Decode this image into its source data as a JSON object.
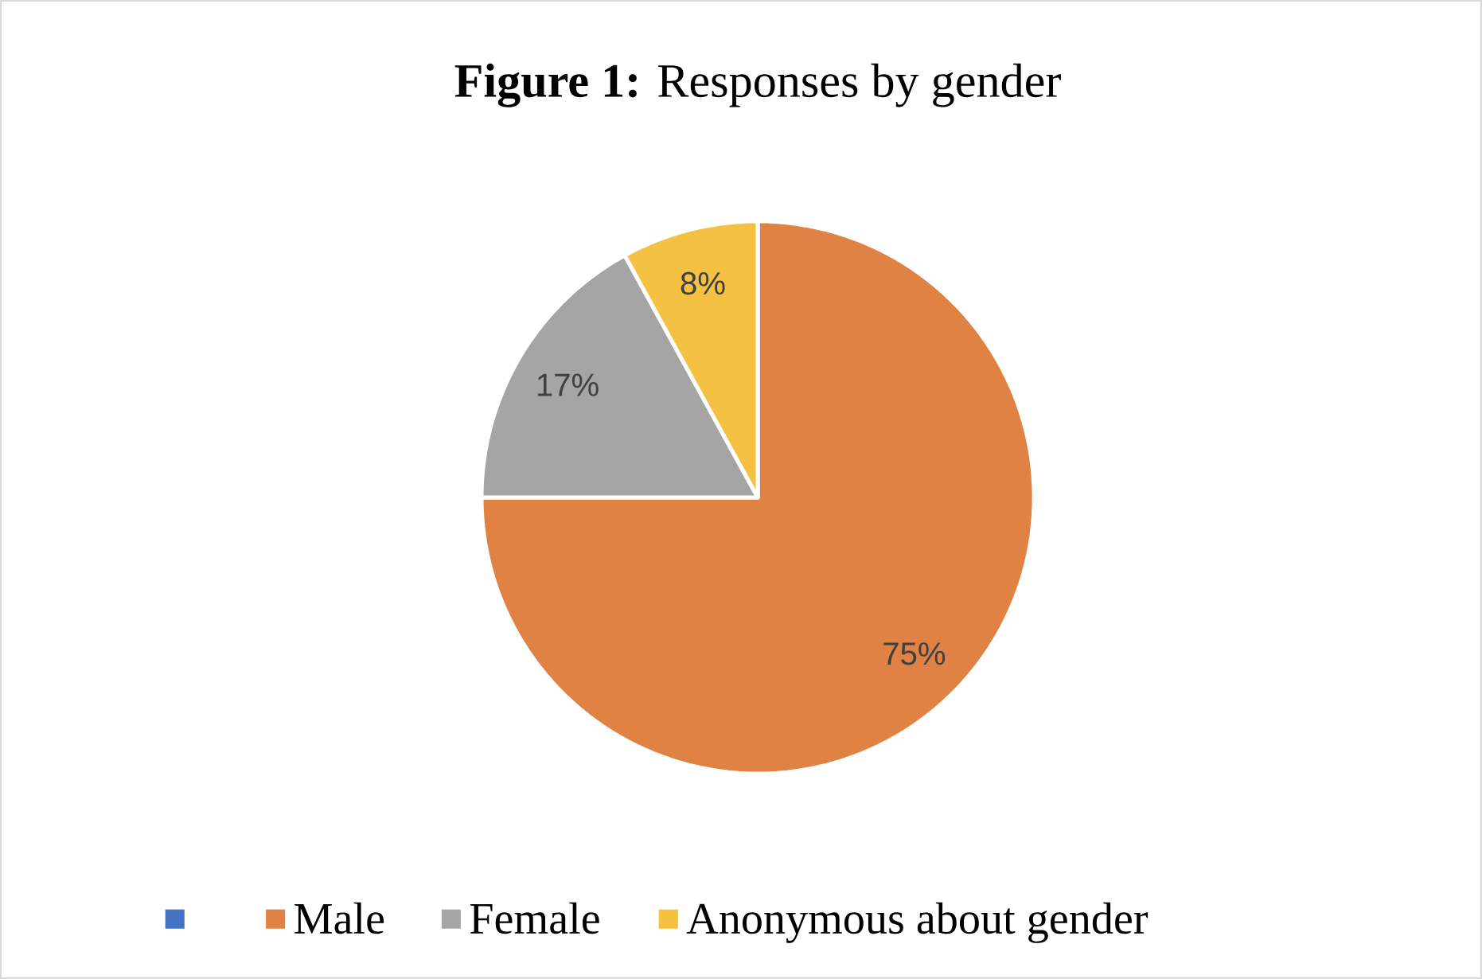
{
  "chart_data": {
    "type": "pie",
    "title": "**Figure 1:** Responses by gender",
    "categories": [
      null,
      "Male",
      "Female",
      "Anonymous about gender"
    ],
    "values": [
      0,
      75,
      17,
      8
    ],
    "value_labels": [
      null,
      "75%",
      "17%",
      "8%"
    ],
    "colors": [
      "#4472c4",
      "#e08243",
      "#a5a5a5",
      "#f5c142"
    ],
    "legend": "bottom"
  }
}
